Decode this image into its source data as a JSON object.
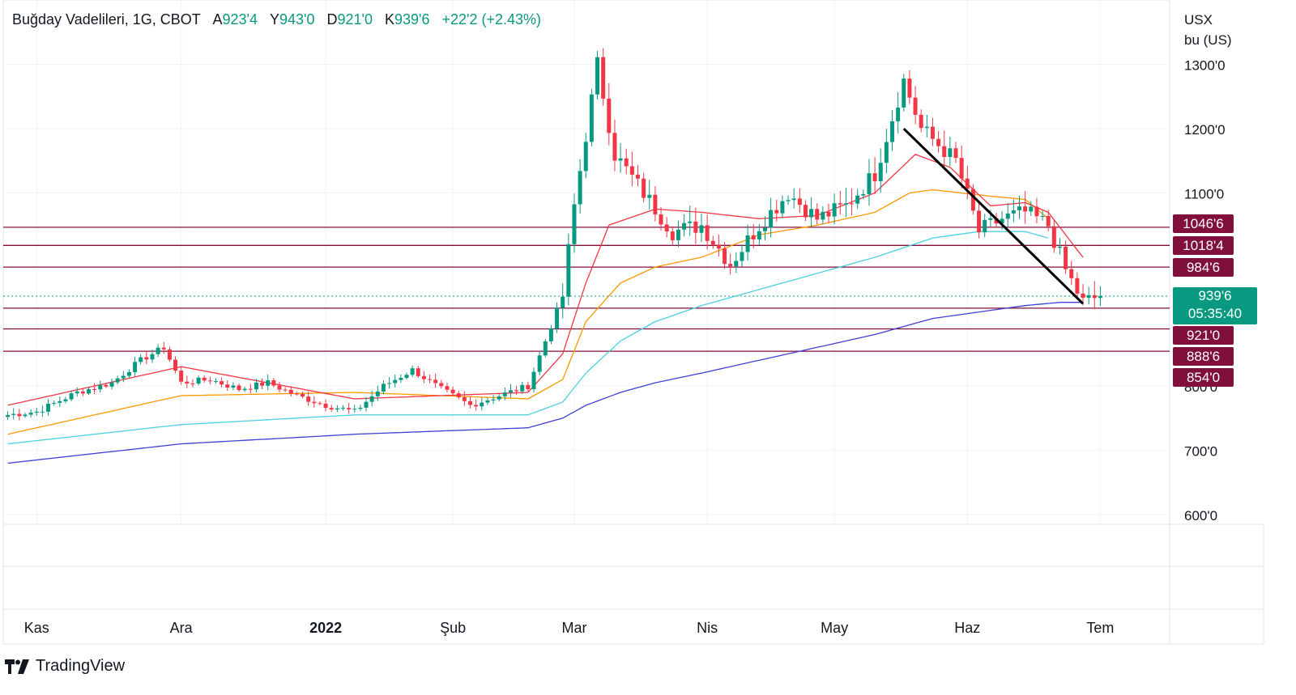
{
  "header": {
    "symbol": "Buğday Vadelileri, 1G, CBOT",
    "open_label": "A",
    "open_value": "923'4",
    "high_label": "Y",
    "high_value": "943'0",
    "low_label": "D",
    "low_value": "921'0",
    "close_label": "K",
    "close_value": "939'6",
    "change": "+22'2 (+2.43%)"
  },
  "axis": {
    "unit_line1": "USX",
    "unit_line2": "bu (US)"
  },
  "last_price": {
    "value": "939'6",
    "countdown": "05:35:40"
  },
  "level_labels": [
    "1046'6",
    "1018'4",
    "984'6",
    "921'0",
    "888'6",
    "854'0"
  ],
  "brand": {
    "name": "TradingView"
  },
  "colors": {
    "up": "#089981",
    "down": "#f23645",
    "level": "#800f3c",
    "ma_fast": "#f23645",
    "ma_mid": "#ff9800",
    "ma_slow": "#4dd0e1",
    "ma_long": "#3f3fd4"
  },
  "chart_data": {
    "type": "candlestick",
    "title": "Buğday Vadelileri, 1G, CBOT",
    "y_ticks": [
      "1300'0",
      "1200'0",
      "1100'0",
      "800'0",
      "700'0",
      "600'0"
    ],
    "y_tick_values": [
      1300,
      1200,
      1100,
      800,
      700,
      600
    ],
    "ylim": [
      585,
      1400
    ],
    "x_ticks": [
      "Kas",
      "Ara",
      "2022",
      "Şub",
      "Mar",
      "Nis",
      "May",
      "Haz",
      "Tem"
    ],
    "x_tick_index": [
      5,
      30,
      55,
      77,
      98,
      121,
      143,
      166,
      189
    ],
    "n_bars": 190,
    "support_resistance_levels": [
      1046.75,
      1018.5,
      984.75,
      921.0,
      888.75,
      854.0
    ],
    "last_close": 939.75,
    "anchors": [
      [
        0,
        755
      ],
      [
        5,
        760
      ],
      [
        12,
        790
      ],
      [
        18,
        805
      ],
      [
        23,
        840
      ],
      [
        27,
        860
      ],
      [
        30,
        805
      ],
      [
        35,
        810
      ],
      [
        40,
        795
      ],
      [
        45,
        805
      ],
      [
        50,
        785
      ],
      [
        55,
        770
      ],
      [
        60,
        760
      ],
      [
        65,
        800
      ],
      [
        70,
        825
      ],
      [
        75,
        795
      ],
      [
        80,
        770
      ],
      [
        85,
        785
      ],
      [
        90,
        800
      ],
      [
        93,
        870
      ],
      [
        96,
        940
      ],
      [
        98,
        1080
      ],
      [
        102,
        1300
      ],
      [
        105,
        1160
      ],
      [
        110,
        1100
      ],
      [
        115,
        1040
      ],
      [
        120,
        1050
      ],
      [
        125,
        990
      ],
      [
        130,
        1050
      ],
      [
        135,
        1100
      ],
      [
        140,
        1060
      ],
      [
        145,
        1080
      ],
      [
        150,
        1130
      ],
      [
        155,
        1275
      ],
      [
        158,
        1200
      ],
      [
        164,
        1150
      ],
      [
        168,
        1040
      ],
      [
        172,
        1060
      ],
      [
        176,
        1070
      ],
      [
        180,
        1050
      ],
      [
        183,
        980
      ],
      [
        186,
        930
      ],
      [
        189,
        940
      ]
    ],
    "trendline": [
      [
        155,
        1200
      ],
      [
        186,
        928
      ]
    ],
    "ma_fast": [
      [
        0,
        770
      ],
      [
        30,
        830
      ],
      [
        60,
        780
      ],
      [
        90,
        790
      ],
      [
        96,
        850
      ],
      [
        100,
        960
      ],
      [
        104,
        1050
      ],
      [
        112,
        1075
      ],
      [
        120,
        1070
      ],
      [
        130,
        1060
      ],
      [
        140,
        1065
      ],
      [
        150,
        1100
      ],
      [
        157,
        1160
      ],
      [
        163,
        1140
      ],
      [
        170,
        1080
      ],
      [
        176,
        1085
      ],
      [
        180,
        1070
      ],
      [
        186,
        1000
      ]
    ],
    "ma_mid": [
      [
        0,
        725
      ],
      [
        30,
        785
      ],
      [
        60,
        790
      ],
      [
        90,
        780
      ],
      [
        96,
        810
      ],
      [
        100,
        900
      ],
      [
        106,
        960
      ],
      [
        112,
        985
      ],
      [
        120,
        1000
      ],
      [
        130,
        1035
      ],
      [
        140,
        1050
      ],
      [
        150,
        1070
      ],
      [
        156,
        1100
      ],
      [
        160,
        1105
      ],
      [
        170,
        1095
      ],
      [
        176,
        1090
      ],
      [
        180,
        1060
      ]
    ],
    "ma_slow": [
      [
        0,
        710
      ],
      [
        30,
        740
      ],
      [
        60,
        755
      ],
      [
        90,
        755
      ],
      [
        96,
        775
      ],
      [
        100,
        820
      ],
      [
        106,
        870
      ],
      [
        112,
        900
      ],
      [
        120,
        925
      ],
      [
        130,
        950
      ],
      [
        140,
        975
      ],
      [
        150,
        1000
      ],
      [
        160,
        1030
      ],
      [
        168,
        1040
      ],
      [
        176,
        1040
      ],
      [
        180,
        1030
      ]
    ],
    "ma_long": [
      [
        0,
        680
      ],
      [
        30,
        710
      ],
      [
        60,
        725
      ],
      [
        90,
        735
      ],
      [
        96,
        750
      ],
      [
        100,
        770
      ],
      [
        106,
        790
      ],
      [
        112,
        805
      ],
      [
        120,
        820
      ],
      [
        130,
        840
      ],
      [
        140,
        860
      ],
      [
        150,
        880
      ],
      [
        160,
        905
      ],
      [
        168,
        915
      ],
      [
        176,
        925
      ],
      [
        182,
        930
      ],
      [
        186,
        930
      ]
    ]
  }
}
